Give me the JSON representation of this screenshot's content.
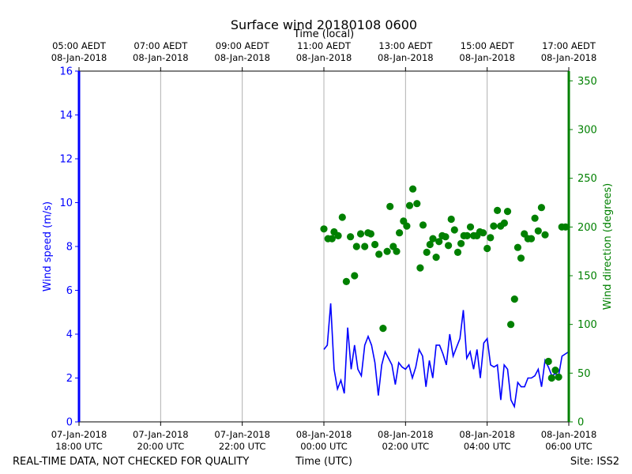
{
  "chart_data": {
    "type": "line+scatter",
    "title": "Surface wind 20180108 0600",
    "top_axis_label": "Time (local)",
    "xlabel": "Time (UTC)",
    "ylabel_left": "Wind speed (m/s)",
    "ylabel_right": "Wind direction (degrees)",
    "footer_left": "REAL-TIME DATA, NOT CHECKED FOR QUALITY",
    "footer_right": "Site: ISS2",
    "x_range_hours_utc": [
      -6,
      6
    ],
    "left_ylim": [
      0,
      16
    ],
    "right_ylim": [
      0,
      360
    ],
    "left_ticks": [
      "0",
      "2",
      "4",
      "6",
      "8",
      "10",
      "12",
      "14",
      "16"
    ],
    "right_ticks": [
      "0",
      "50",
      "100",
      "150",
      "200",
      "250",
      "300",
      "350"
    ],
    "bottom_ticks": [
      {
        "h": -6,
        "line1": "07-Jan-2018",
        "line2": "18:00 UTC"
      },
      {
        "h": -4,
        "line1": "07-Jan-2018",
        "line2": "20:00 UTC"
      },
      {
        "h": -2,
        "line1": "07-Jan-2018",
        "line2": "22:00 UTC"
      },
      {
        "h": 0,
        "line1": "08-Jan-2018",
        "line2": "00:00 UTC"
      },
      {
        "h": 2,
        "line1": "08-Jan-2018",
        "line2": "02:00 UTC"
      },
      {
        "h": 4,
        "line1": "08-Jan-2018",
        "line2": "04:00 UTC"
      },
      {
        "h": 6,
        "line1": "08-Jan-2018",
        "line2": "06:00 UTC"
      }
    ],
    "top_ticks": [
      {
        "h": -6,
        "line1": "05:00 AEDT",
        "line2": "08-Jan-2018"
      },
      {
        "h": -4,
        "line1": "07:00 AEDT",
        "line2": "08-Jan-2018"
      },
      {
        "h": -2,
        "line1": "09:00 AEDT",
        "line2": "08-Jan-2018"
      },
      {
        "h": 0,
        "line1": "11:00 AEDT",
        "line2": "08-Jan-2018"
      },
      {
        "h": 2,
        "line1": "13:00 AEDT",
        "line2": "08-Jan-2018"
      },
      {
        "h": 4,
        "line1": "15:00 AEDT",
        "line2": "08-Jan-2018"
      },
      {
        "h": 6,
        "line1": "17:00 AEDT",
        "line2": "08-Jan-2018"
      }
    ],
    "colors": {
      "speed": "#0000ff",
      "direction": "#008000",
      "grid": "#b0b0b0",
      "axis": "#000000"
    },
    "series": [
      {
        "name": "Wind speed (m/s)",
        "type": "line",
        "axis": "left",
        "x": [
          0.0,
          0.083,
          0.167,
          0.25,
          0.333,
          0.417,
          0.5,
          0.583,
          0.667,
          0.75,
          0.833,
          0.917,
          1.0,
          1.083,
          1.167,
          1.25,
          1.333,
          1.417,
          1.5,
          1.583,
          1.667,
          1.75,
          1.833,
          1.917,
          2.0,
          2.083,
          2.167,
          2.25,
          2.333,
          2.417,
          2.5,
          2.583,
          2.667,
          2.75,
          2.833,
          2.917,
          3.0,
          3.083,
          3.167,
          3.25,
          3.333,
          3.417,
          3.5,
          3.583,
          3.667,
          3.75,
          3.833,
          3.917,
          4.0,
          4.083,
          4.167,
          4.25,
          4.333,
          4.417,
          4.5,
          4.583,
          4.667,
          4.75,
          4.833,
          4.917,
          5.0,
          5.083,
          5.167,
          5.25,
          5.333,
          5.417,
          5.5,
          5.583,
          5.667,
          5.75,
          5.833,
          5.917,
          6.0
        ],
        "values": [
          3.3,
          3.5,
          5.4,
          2.4,
          1.5,
          1.9,
          1.3,
          4.3,
          2.4,
          3.5,
          2.4,
          2.1,
          3.5,
          3.9,
          3.5,
          2.7,
          1.2,
          2.6,
          3.2,
          2.9,
          2.6,
          1.7,
          2.7,
          2.5,
          2.4,
          2.6,
          2.0,
          2.5,
          3.3,
          3.0,
          1.6,
          2.8,
          2.0,
          3.5,
          3.5,
          3.1,
          2.6,
          4.0,
          3.0,
          3.4,
          3.8,
          5.1,
          2.9,
          3.2,
          2.4,
          3.3,
          2.0,
          3.6,
          3.8,
          2.6,
          2.5,
          2.6,
          1.0,
          2.6,
          2.4,
          1.0,
          0.7,
          1.8,
          1.6,
          1.6,
          2.0,
          2.0,
          2.1,
          2.4,
          1.6,
          2.8,
          2.5,
          2.1,
          2.2,
          2.1,
          3.0,
          3.1,
          3.2
        ]
      },
      {
        "name": "Wind direction (degrees)",
        "type": "scatter",
        "axis": "right",
        "x": [
          0.0,
          0.1,
          0.2,
          0.25,
          0.35,
          0.45,
          0.55,
          0.65,
          0.75,
          0.8,
          0.9,
          1.0,
          1.08,
          1.15,
          1.25,
          1.35,
          1.45,
          1.55,
          1.62,
          1.7,
          1.78,
          1.85,
          1.95,
          2.03,
          2.1,
          2.18,
          2.28,
          2.36,
          2.43,
          2.52,
          2.6,
          2.67,
          2.75,
          2.82,
          2.9,
          2.98,
          3.05,
          3.12,
          3.2,
          3.28,
          3.36,
          3.43,
          3.51,
          3.59,
          3.67,
          3.75,
          3.82,
          3.9,
          4.0,
          4.08,
          4.16,
          4.25,
          4.33,
          4.42,
          4.5,
          4.58,
          4.67,
          4.75,
          4.83,
          4.91,
          5.0,
          5.08,
          5.17,
          5.25,
          5.33,
          5.42,
          5.5,
          5.58,
          5.67,
          5.75,
          5.83,
          5.92
        ],
        "values": [
          198,
          188,
          188,
          195,
          191,
          210,
          144,
          190,
          150,
          180,
          193,
          180,
          194,
          193,
          182,
          172,
          96,
          175,
          221,
          180,
          175,
          194,
          206,
          201,
          222,
          239,
          224,
          158,
          202,
          174,
          182,
          188,
          169,
          185,
          191,
          190,
          181,
          208,
          197,
          174,
          183,
          191,
          191,
          200,
          191,
          191,
          195,
          194,
          178,
          189,
          201,
          217,
          201,
          204,
          216,
          100,
          126,
          179,
          168,
          193,
          188,
          188,
          209,
          196,
          220,
          192,
          62,
          45,
          53,
          46,
          200,
          200
        ]
      }
    ]
  }
}
